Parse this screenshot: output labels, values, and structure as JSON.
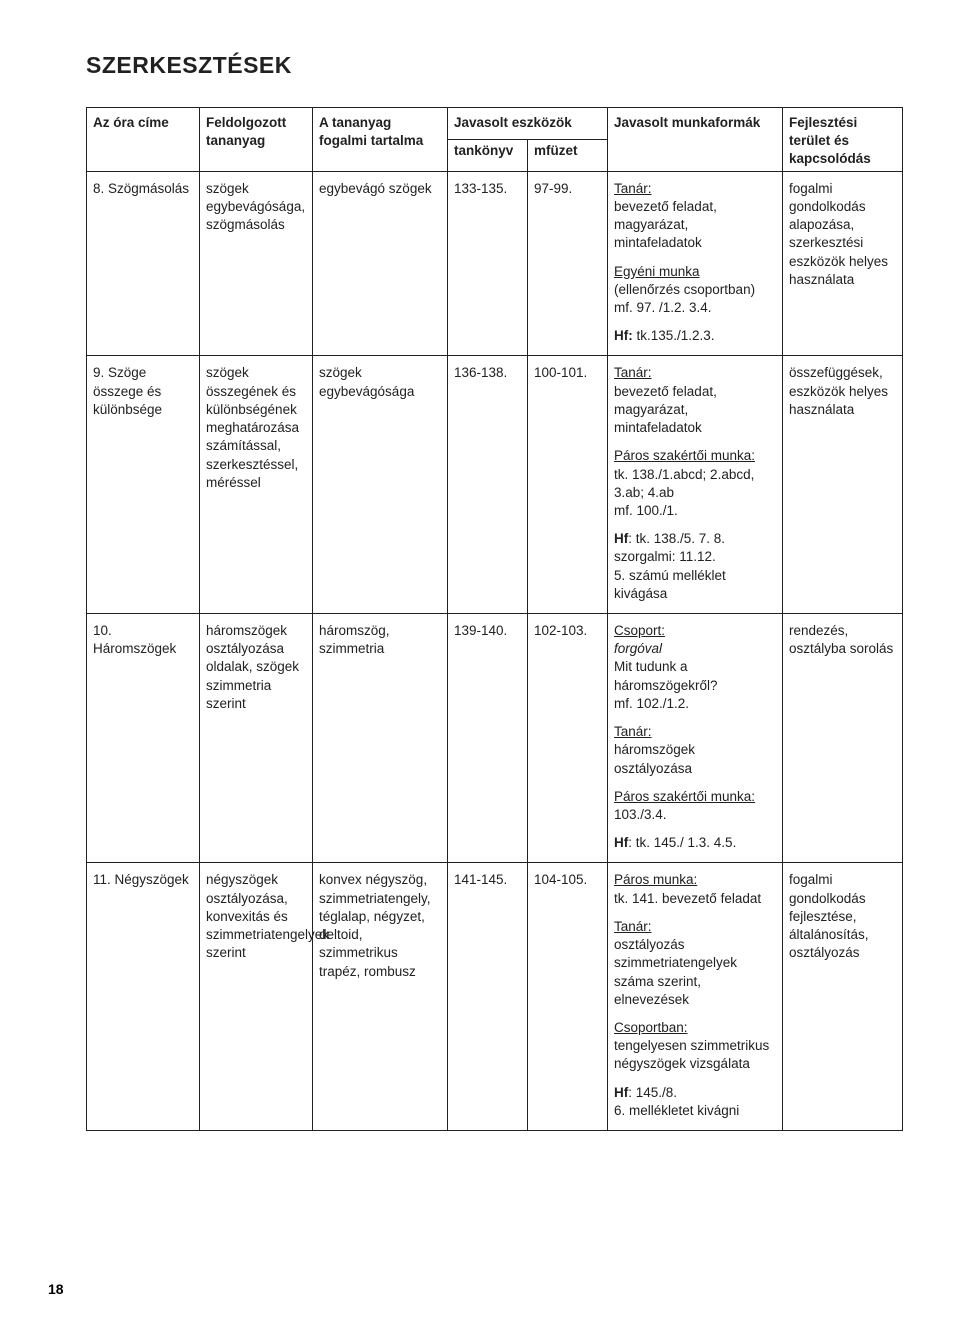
{
  "pageNumber": "18",
  "sectionTitle": "SZERKESZTÉSEK",
  "header": {
    "col1": "Az óra címe",
    "col2": "Feldolgozott tananyag",
    "col3": "A tananyag fogalmi tartalma",
    "col4group": "Javasolt eszközök",
    "col4": "tankönyv",
    "col5": "mfüzet",
    "col6": "Javasolt munkaformák",
    "col7": "Fejlesztési terület és kapcsolódás"
  },
  "rows": [
    {
      "c1": "8. Szögmásolás",
      "c2": "szögek egybevágósága, szögmásolás",
      "c3": "egybevágó szögek",
      "c4": "133-135.",
      "c5": "97-99.",
      "c6_a_u": "Tanár:",
      "c6_a_txt": "bevezető feladat, magyarázat, mintafeladatok",
      "c6_b_u": "Egyéni munka",
      "c6_b_txt": "(ellenőrzés csoportban) mf. 97. /1.2. 3.4.",
      "c6_hf": "Hf:  tk.135./1.2.3.",
      "c7": "fogalmi gondolkodás alapozása, szerkesztési eszközök helyes használata"
    },
    {
      "c1": "9. Szöge összege és különbsége",
      "c2": "szögek összegének és különbségének meghatározása számítással, szerkesztéssel, méréssel",
      "c3": "szögek egybevágósága",
      "c4": "136-138.",
      "c5": "100-101.",
      "c6_a_u": "Tanár:",
      "c6_a_txt": "bevezető feladat, magyarázat, mintafeladatok",
      "c6_b_u": "Páros szakértői munka:",
      "c6_b_txt": "tk. 138./1.abcd; 2.abcd, 3.ab; 4.ab\nmf. 100./1.",
      "c6_hf": "Hf: tk. 138./5. 7. 8.\nszorgalmi: 11.12.\n5. számú melléklet kivágása",
      "c7": "összefüggések, eszközök helyes használata"
    },
    {
      "c1": "10. Háromszögek",
      "c2": "háromszögek osztályozása oldalak, szögek szimmetria szerint",
      "c3": "háromszög, szimmetria",
      "c4": "139-140.",
      "c5": "102-103.",
      "c6_a_u": "Csoport:",
      "c6_a_txt_i": "forgóval",
      "c6_a_txt": "Mit tudunk a háromszögekről?\nmf. 102./1.2.",
      "c6_b_u": "Tanár:",
      "c6_b_txt": "háromszögek osztályozása",
      "c6_c_u": "Páros szakértői munka:",
      "c6_c_txt": "103./3.4.",
      "c6_hf": "Hf: tk. 145./ 1.3. 4.5.",
      "c7": "rendezés, osztályba sorolás"
    },
    {
      "c1": "11. Négyszögek",
      "c2": "négyszögek osztályozása, konvexitás és szimmetriatengelyek szerint",
      "c3": "konvex négyszög, szimmetriatengely, téglalap, négyzet, deltoid, szimmetrikus trapéz, rombusz",
      "c4": "141-145.",
      "c5": "104-105.",
      "c6_a_u": "Páros munka:",
      "c6_a_txt": "tk. 141. bevezető feladat",
      "c6_b_u": "Tanár:",
      "c6_b_txt": "osztályozás szimmetriatengelyek száma szerint, elnevezések",
      "c6_c_u": "Csoportban:",
      "c6_c_txt": "tengelyesen szimmetrikus négyszögek vizsgálata",
      "c6_hf": "Hf: 145./8.\n6. mellékletet kivágni",
      "c7": "fogalmi gondolkodás fejlesztése, általánosítás, osztályozás"
    }
  ]
}
